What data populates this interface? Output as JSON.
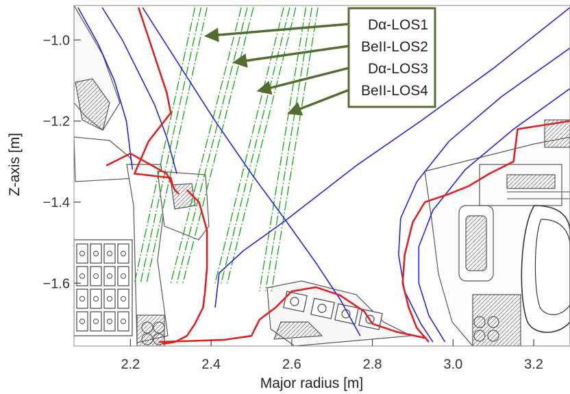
{
  "chart_data": {
    "type": "diagram",
    "title": "",
    "xlabel": "Major radius [m]",
    "ylabel": "Z-axis [m]",
    "xlim": [
      2.06,
      3.29
    ],
    "ylim": [
      -1.755,
      -0.915
    ],
    "x_ticks": [
      {
        "value": 2.2,
        "label": "2.2"
      },
      {
        "value": 2.4,
        "label": "2.4"
      },
      {
        "value": 2.6,
        "label": "2.6"
      },
      {
        "value": 2.8,
        "label": "2.8"
      },
      {
        "value": 3.0,
        "label": "3.0"
      },
      {
        "value": 3.2,
        "label": "3.2"
      }
    ],
    "y_ticks": [
      {
        "value": -1.0,
        "label": "−1.0"
      },
      {
        "value": -1.2,
        "label": "−1.2"
      },
      {
        "value": -1.4,
        "label": "−1.4"
      },
      {
        "value": -1.6,
        "label": "−1.6"
      }
    ],
    "colors": {
      "flux_lines": "#2323d6",
      "wall_outline": "#e02020",
      "structure": "#555555",
      "los": "#22aa22",
      "legend_border": "#556b2f",
      "arrow": "#556b2f"
    },
    "separatrix_x_point": {
      "r": 2.585,
      "z": -1.445
    },
    "los_groups": [
      {
        "name": "Dα-LOS1",
        "lines": [
          {
            "r0": 2.36,
            "z0": -0.92,
            "r1": 2.21,
            "z1": -1.6
          },
          {
            "r0": 2.375,
            "z0": -0.92,
            "r1": 2.225,
            "z1": -1.6
          },
          {
            "r0": 2.39,
            "z0": -0.92,
            "r1": 2.24,
            "z1": -1.6
          }
        ]
      },
      {
        "name": "BeII-LOS2",
        "lines": [
          {
            "r0": 2.475,
            "z0": -0.92,
            "r1": 2.3,
            "z1": -1.6
          },
          {
            "r0": 2.49,
            "z0": -0.92,
            "r1": 2.315,
            "z1": -1.6
          },
          {
            "r0": 2.505,
            "z0": -0.92,
            "r1": 2.33,
            "z1": -1.6
          }
        ]
      },
      {
        "name": "Dα-LOS3",
        "lines": [
          {
            "r0": 2.58,
            "z0": -0.92,
            "r1": 2.41,
            "z1": -1.6
          },
          {
            "r0": 2.595,
            "z0": -0.92,
            "r1": 2.425,
            "z1": -1.6
          },
          {
            "r0": 2.61,
            "z0": -0.92,
            "r1": 2.44,
            "z1": -1.6
          }
        ]
      },
      {
        "name": "BeII-LOS4",
        "lines": [
          {
            "r0": 2.635,
            "z0": -0.92,
            "r1": 2.52,
            "z1": -1.62
          },
          {
            "r0": 2.65,
            "z0": -0.92,
            "r1": 2.535,
            "z1": -1.62
          },
          {
            "r0": 2.665,
            "z0": -0.92,
            "r1": 2.55,
            "z1": -1.62
          }
        ]
      }
    ],
    "legend": {
      "placement": "top-center",
      "entries": [
        {
          "label": "Dα-LOS1",
          "target": {
            "r": 2.39,
            "z": -0.99
          }
        },
        {
          "label": "BeII-LOS2",
          "target": {
            "r": 2.46,
            "z": -1.055
          }
        },
        {
          "label": "Dα-LOS3",
          "target": {
            "r": 2.52,
            "z": -1.125
          }
        },
        {
          "label": "BeII-LOS4",
          "target": {
            "r": 2.595,
            "z": -1.18
          }
        }
      ]
    },
    "flux_surfaces": [
      {
        "name": "inner-sol-1",
        "points": [
          [
            2.07,
            -0.92
          ],
          [
            2.12,
            -1.01
          ],
          [
            2.16,
            -1.1
          ],
          [
            2.19,
            -1.2
          ],
          [
            2.205,
            -1.32
          ]
        ]
      },
      {
        "name": "inner-sol-2",
        "points": [
          [
            2.13,
            -0.92
          ],
          [
            2.18,
            -1.0
          ],
          [
            2.22,
            -1.08
          ],
          [
            2.26,
            -1.16
          ],
          [
            2.29,
            -1.24
          ],
          [
            2.315,
            -1.33
          ]
        ]
      },
      {
        "name": "separatrix-inner-leg",
        "points": [
          [
            2.23,
            -0.92
          ],
          [
            2.32,
            -1.06
          ],
          [
            2.41,
            -1.2
          ],
          [
            2.5,
            -1.33
          ],
          [
            2.585,
            -1.445
          ],
          [
            2.66,
            -1.55
          ],
          [
            2.72,
            -1.64
          ],
          [
            2.77,
            -1.73
          ]
        ]
      },
      {
        "name": "separatrix-outer-leg",
        "points": [
          [
            3.29,
            -0.92
          ],
          [
            3.1,
            -1.07
          ],
          [
            2.92,
            -1.2
          ],
          [
            2.76,
            -1.31
          ],
          [
            2.585,
            -1.445
          ],
          [
            2.48,
            -1.52
          ],
          [
            2.42,
            -1.575
          ],
          [
            2.41,
            -1.66
          ]
        ]
      },
      {
        "name": "outer-sol-1",
        "points": [
          [
            3.29,
            -1.02
          ],
          [
            3.12,
            -1.14
          ],
          [
            2.99,
            -1.25
          ],
          [
            2.91,
            -1.35
          ],
          [
            2.87,
            -1.44
          ],
          [
            2.865,
            -1.53
          ],
          [
            2.88,
            -1.62
          ],
          [
            2.92,
            -1.7
          ],
          [
            2.95,
            -1.745
          ]
        ]
      },
      {
        "name": "outer-sol-2",
        "points": [
          [
            3.29,
            -1.12
          ],
          [
            3.15,
            -1.22
          ],
          [
            3.03,
            -1.32
          ],
          [
            2.95,
            -1.42
          ],
          [
            2.915,
            -1.51
          ],
          [
            2.915,
            -1.6
          ],
          [
            2.94,
            -1.68
          ],
          [
            2.98,
            -1.745
          ]
        ]
      }
    ],
    "wall_outline": [
      {
        "name": "inner-wall-upper",
        "points": [
          [
            2.22,
            -0.92
          ],
          [
            2.26,
            -1.04
          ],
          [
            2.29,
            -1.13
          ],
          [
            2.3,
            -1.18
          ],
          [
            2.245,
            -1.25
          ],
          [
            2.21,
            -1.33
          ],
          [
            2.3,
            -1.34
          ],
          [
            2.305,
            -1.36
          ]
        ]
      },
      {
        "name": "inner-baffle",
        "points": [
          [
            2.14,
            -1.31
          ],
          [
            2.2,
            -1.28
          ],
          [
            2.29,
            -1.33
          ],
          [
            2.31,
            -1.37
          ],
          [
            2.32,
            -1.38
          ]
        ]
      },
      {
        "name": "inner-divertor",
        "points": [
          [
            2.34,
            -1.37
          ],
          [
            2.37,
            -1.4
          ],
          [
            2.39,
            -1.47
          ],
          [
            2.39,
            -1.56
          ],
          [
            2.385,
            -1.62
          ],
          [
            2.38,
            -1.66
          ],
          [
            2.36,
            -1.7
          ],
          [
            2.34,
            -1.73
          ],
          [
            2.31,
            -1.745
          ],
          [
            2.28,
            -1.75
          ]
        ]
      },
      {
        "name": "divertor-floor",
        "points": [
          [
            2.27,
            -1.745
          ],
          [
            2.43,
            -1.74
          ],
          [
            2.5,
            -1.73
          ],
          [
            2.52,
            -1.69
          ],
          [
            2.56,
            -1.66
          ],
          [
            2.6,
            -1.62
          ],
          [
            2.66,
            -1.61
          ],
          [
            2.72,
            -1.63
          ],
          [
            2.78,
            -1.67
          ],
          [
            2.8,
            -1.7
          ],
          [
            2.86,
            -1.72
          ],
          [
            2.93,
            -1.735
          ]
        ]
      },
      {
        "name": "outer-divertor",
        "points": [
          [
            3.29,
            -1.2
          ],
          [
            3.16,
            -1.22
          ],
          [
            3.15,
            -1.3
          ],
          [
            3.09,
            -1.33
          ],
          [
            3.04,
            -1.36
          ],
          [
            2.99,
            -1.38
          ],
          [
            2.93,
            -1.4
          ],
          [
            2.9,
            -1.45
          ],
          [
            2.88,
            -1.53
          ],
          [
            2.875,
            -1.6
          ],
          [
            2.89,
            -1.66
          ],
          [
            2.91,
            -1.71
          ],
          [
            2.94,
            -1.745
          ]
        ]
      }
    ]
  }
}
